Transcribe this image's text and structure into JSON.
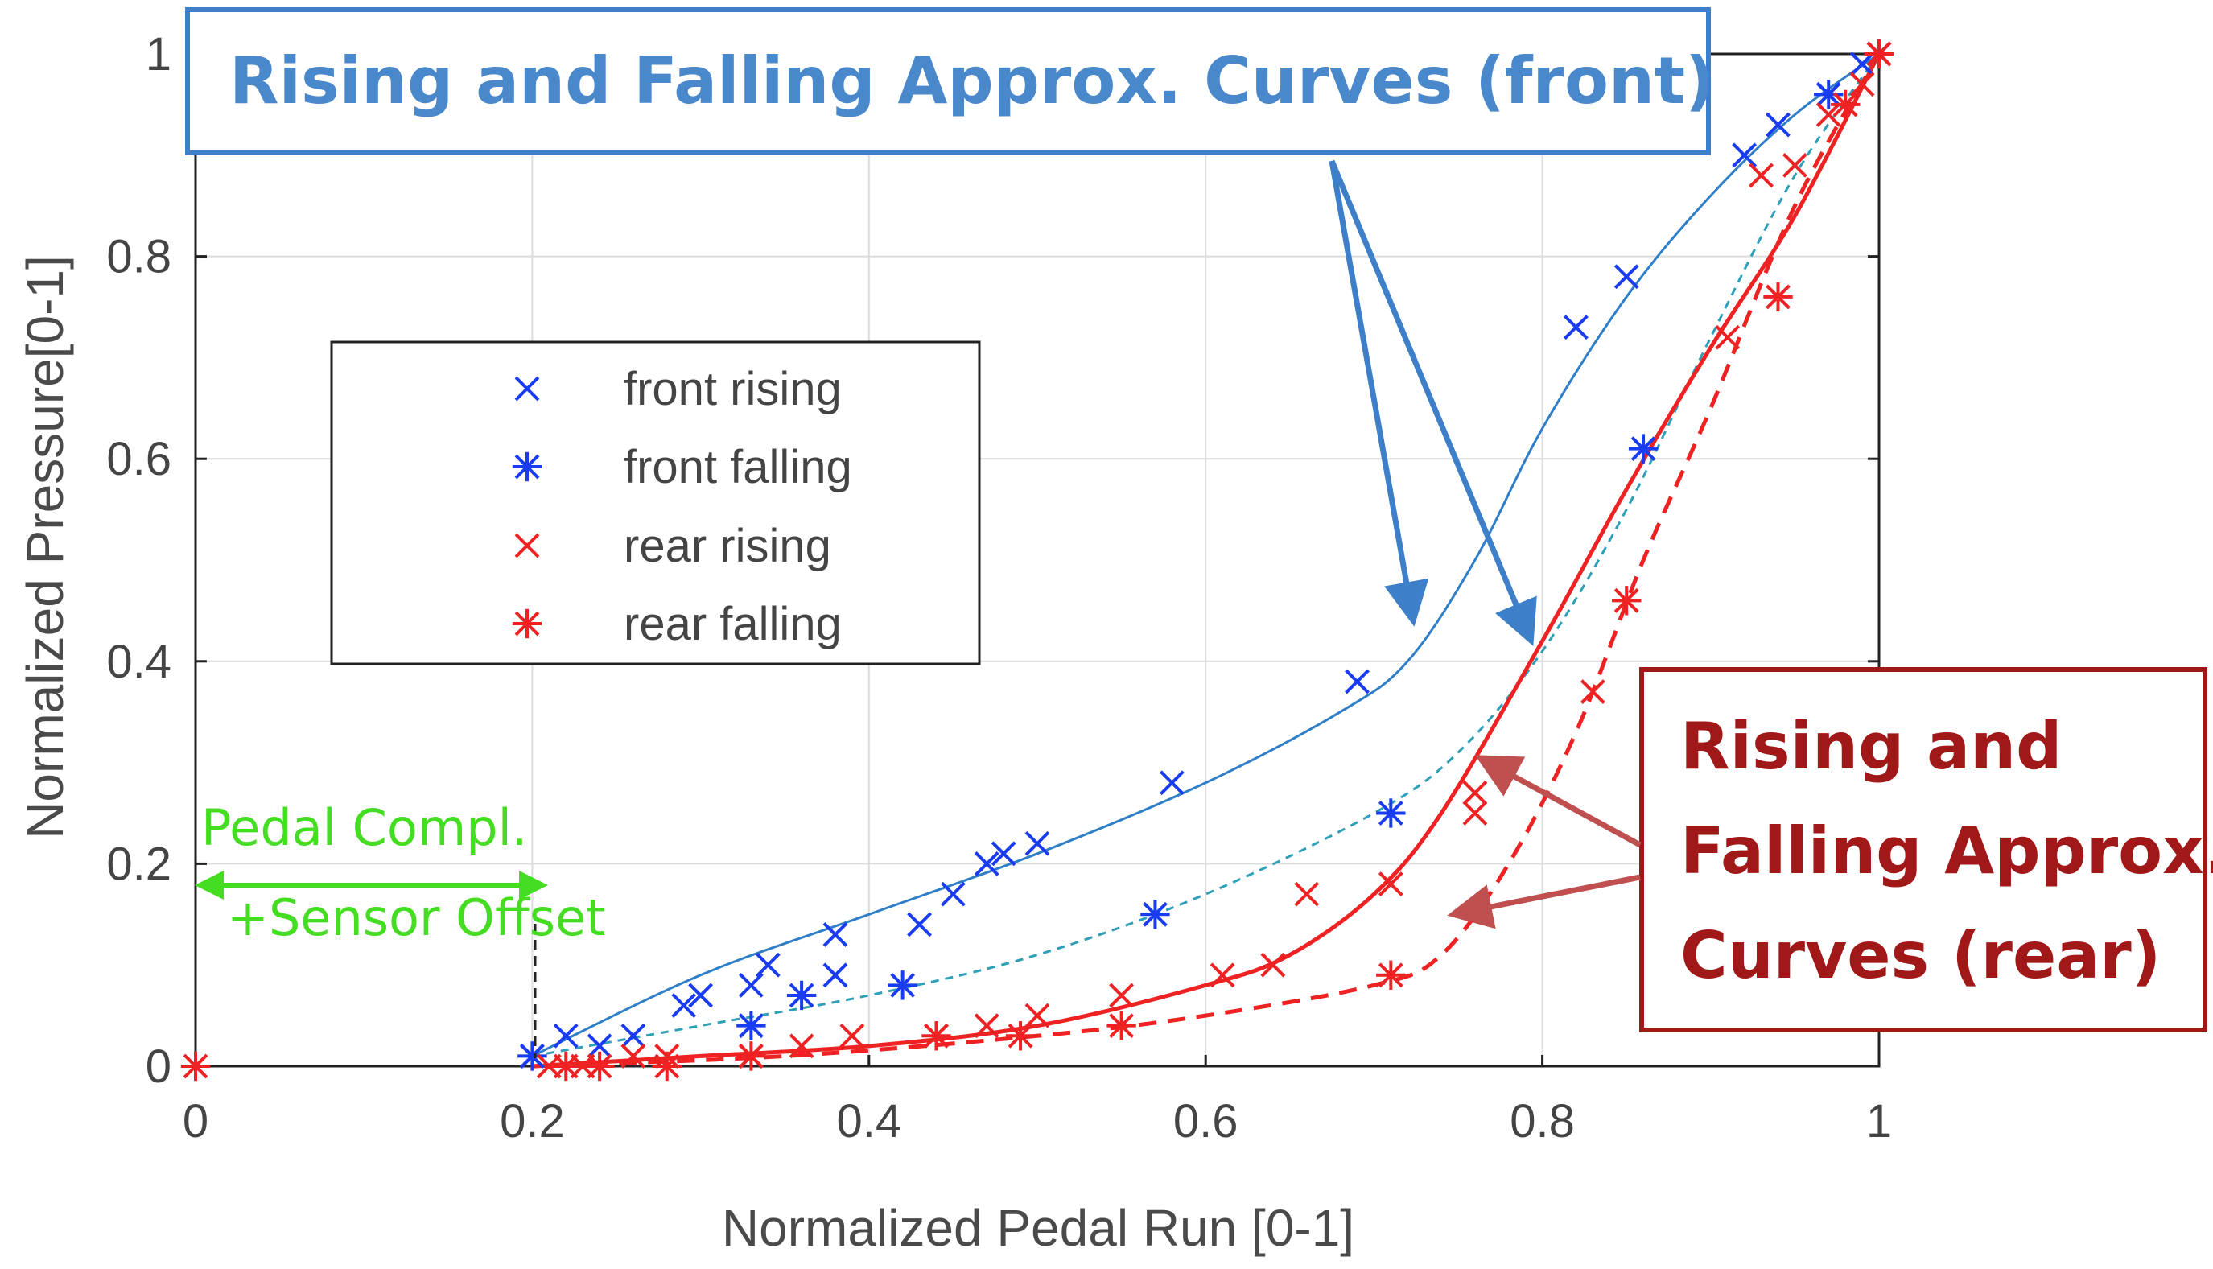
{
  "chart_data": {
    "type": "scatter",
    "xlabel": "Normalized Pedal Run [0-1]",
    "ylabel": "Normalized Pressure[0-1]",
    "xlim": [
      0,
      1
    ],
    "ylim": [
      0,
      1
    ],
    "xticks": [
      0,
      0.2,
      0.4,
      0.6,
      0.8,
      1
    ],
    "yticks": [
      0,
      0.2,
      0.4,
      0.6,
      0.8,
      1
    ],
    "xtick_labels": [
      "0",
      "0.2",
      "0.4",
      "0.6",
      "0.8",
      "1"
    ],
    "ytick_labels": [
      "0",
      "0.2",
      "0.4",
      "0.6",
      "0.8",
      "1"
    ],
    "grid": true,
    "legend_position": "upper-left",
    "series": [
      {
        "name": "front rising",
        "marker": "x",
        "color": "#1a3cf0",
        "points": [
          [
            0.2,
            0.01
          ],
          [
            0.22,
            0.03
          ],
          [
            0.24,
            0.02
          ],
          [
            0.26,
            0.03
          ],
          [
            0.29,
            0.06
          ],
          [
            0.3,
            0.07
          ],
          [
            0.33,
            0.08
          ],
          [
            0.34,
            0.1
          ],
          [
            0.38,
            0.09
          ],
          [
            0.38,
            0.13
          ],
          [
            0.43,
            0.14
          ],
          [
            0.45,
            0.17
          ],
          [
            0.47,
            0.2
          ],
          [
            0.48,
            0.21
          ],
          [
            0.5,
            0.22
          ],
          [
            0.58,
            0.28
          ],
          [
            0.69,
            0.38
          ],
          [
            0.82,
            0.73
          ],
          [
            0.85,
            0.78
          ],
          [
            0.92,
            0.9
          ],
          [
            0.94,
            0.93
          ],
          [
            0.97,
            0.96
          ],
          [
            0.99,
            0.99
          ],
          [
            1.0,
            1.0
          ]
        ]
      },
      {
        "name": "front falling",
        "marker": "*",
        "color": "#1a3cf0",
        "points": [
          [
            0.2,
            0.01
          ],
          [
            0.33,
            0.04
          ],
          [
            0.36,
            0.07
          ],
          [
            0.42,
            0.08
          ],
          [
            0.57,
            0.15
          ],
          [
            0.71,
            0.25
          ],
          [
            0.86,
            0.61
          ],
          [
            0.97,
            0.96
          ],
          [
            1.0,
            1.0
          ]
        ]
      },
      {
        "name": "rear rising",
        "marker": "x",
        "color": "#ee2222",
        "points": [
          [
            0.21,
            0.0
          ],
          [
            0.23,
            0.0
          ],
          [
            0.26,
            0.01
          ],
          [
            0.28,
            0.01
          ],
          [
            0.33,
            0.01
          ],
          [
            0.36,
            0.02
          ],
          [
            0.39,
            0.03
          ],
          [
            0.44,
            0.03
          ],
          [
            0.47,
            0.04
          ],
          [
            0.5,
            0.05
          ],
          [
            0.55,
            0.07
          ],
          [
            0.61,
            0.09
          ],
          [
            0.64,
            0.1
          ],
          [
            0.66,
            0.17
          ],
          [
            0.71,
            0.18
          ],
          [
            0.76,
            0.25
          ],
          [
            0.76,
            0.27
          ],
          [
            0.83,
            0.37
          ],
          [
            0.91,
            0.72
          ],
          [
            0.93,
            0.88
          ],
          [
            0.95,
            0.89
          ],
          [
            0.97,
            0.94
          ],
          [
            0.99,
            0.97
          ],
          [
            1.0,
            1.0
          ]
        ]
      },
      {
        "name": "rear falling",
        "marker": "*",
        "color": "#ee2222",
        "points": [
          [
            0.0,
            0.0
          ],
          [
            0.22,
            0.0
          ],
          [
            0.24,
            0.0
          ],
          [
            0.28,
            0.0
          ],
          [
            0.33,
            0.01
          ],
          [
            0.44,
            0.03
          ],
          [
            0.49,
            0.03
          ],
          [
            0.55,
            0.04
          ],
          [
            0.71,
            0.09
          ],
          [
            0.85,
            0.46
          ],
          [
            0.94,
            0.76
          ],
          [
            0.98,
            0.95
          ],
          [
            1.0,
            1.0
          ]
        ]
      }
    ],
    "fit_curves": [
      {
        "name": "front rising approx",
        "color": "#2f7fc8",
        "style": "solid",
        "points": [
          [
            0.2,
            0.01
          ],
          [
            0.3,
            0.09
          ],
          [
            0.4,
            0.15
          ],
          [
            0.5,
            0.21
          ],
          [
            0.6,
            0.28
          ],
          [
            0.68,
            0.35
          ],
          [
            0.72,
            0.4
          ],
          [
            0.76,
            0.5
          ],
          [
            0.8,
            0.63
          ],
          [
            0.85,
            0.76
          ],
          [
            0.9,
            0.86
          ],
          [
            0.95,
            0.94
          ],
          [
            1.0,
            1.0
          ]
        ]
      },
      {
        "name": "front falling approx",
        "color": "#2f9fb8",
        "style": "dashed",
        "points": [
          [
            0.2,
            0.01
          ],
          [
            0.3,
            0.04
          ],
          [
            0.4,
            0.07
          ],
          [
            0.5,
            0.11
          ],
          [
            0.6,
            0.17
          ],
          [
            0.7,
            0.25
          ],
          [
            0.75,
            0.31
          ],
          [
            0.8,
            0.41
          ],
          [
            0.85,
            0.55
          ],
          [
            0.9,
            0.72
          ],
          [
            0.95,
            0.88
          ],
          [
            1.0,
            1.0
          ]
        ]
      },
      {
        "name": "rear rising approx",
        "color": "#ee2222",
        "style": "solid",
        "points": [
          [
            0.2,
            0.0
          ],
          [
            0.3,
            0.01
          ],
          [
            0.4,
            0.02
          ],
          [
            0.5,
            0.04
          ],
          [
            0.6,
            0.08
          ],
          [
            0.65,
            0.11
          ],
          [
            0.7,
            0.17
          ],
          [
            0.74,
            0.25
          ],
          [
            0.8,
            0.42
          ],
          [
            0.85,
            0.57
          ],
          [
            0.9,
            0.71
          ],
          [
            0.95,
            0.84
          ],
          [
            1.0,
            1.0
          ]
        ]
      },
      {
        "name": "rear falling approx",
        "color": "#ee2222",
        "style": "dashed",
        "points": [
          [
            0.2,
            0.0
          ],
          [
            0.35,
            0.01
          ],
          [
            0.5,
            0.03
          ],
          [
            0.6,
            0.05
          ],
          [
            0.7,
            0.08
          ],
          [
            0.74,
            0.11
          ],
          [
            0.78,
            0.2
          ],
          [
            0.82,
            0.33
          ],
          [
            0.86,
            0.5
          ],
          [
            0.9,
            0.65
          ],
          [
            0.95,
            0.85
          ],
          [
            1.0,
            1.0
          ]
        ]
      }
    ]
  },
  "annotations": {
    "front_box": "Rising and Falling Approx. Curves (front)",
    "rear_box": [
      "Rising and",
      "Falling Approx.",
      "Curves (rear)"
    ],
    "pedal_label": [
      "Pedal Compl.",
      "+Sensor Offset"
    ]
  },
  "colors": {
    "front_box_border": "#3d7fc8",
    "front_box_text": "#4a88cc",
    "rear_box_border": "#a01818",
    "rear_box_text": "#a01818",
    "front_arrow": "#3d7fc8",
    "rear_arrow": "#c05050",
    "pedal_green": "#44dd22"
  }
}
